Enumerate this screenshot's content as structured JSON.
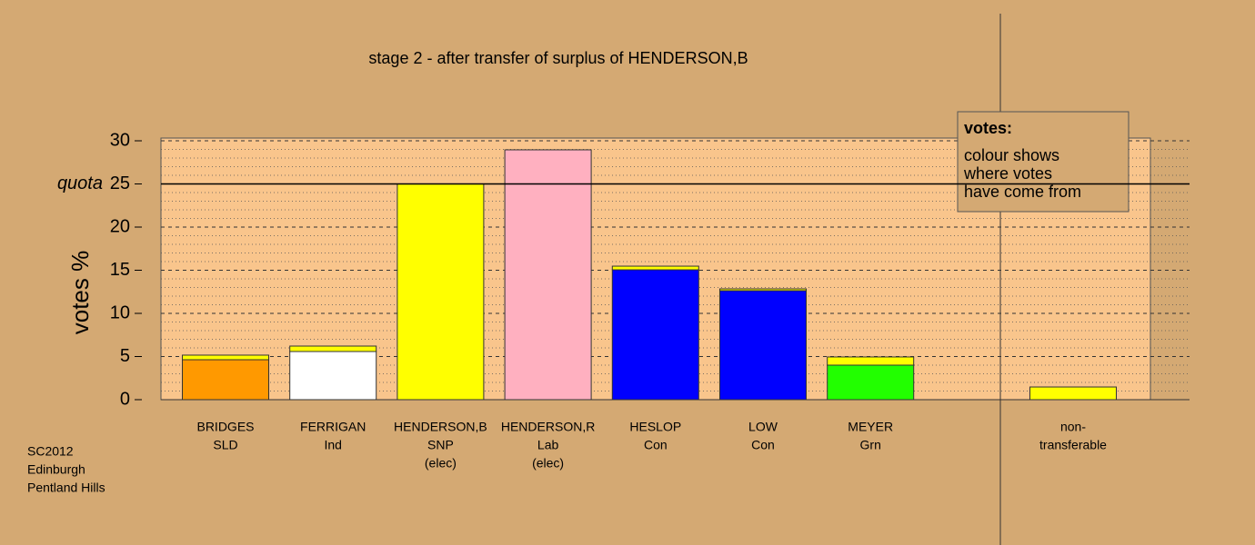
{
  "chart_data": {
    "type": "stacked_bar",
    "title": "stage 2 - after transfer of surplus of HENDERSON,B",
    "y_label": "votes %",
    "categories": [
      [
        "BRIDGES",
        "SLD"
      ],
      [
        "FERRIGAN",
        "Ind"
      ],
      [
        "HENDERSON,B",
        "SNP",
        "(elec)"
      ],
      [
        "HENDERSON,R",
        "Lab",
        "(elec)"
      ],
      [
        "HESLOP",
        "Con"
      ],
      [
        "LOW",
        "Con"
      ],
      [
        "MEYER",
        "Grn"
      ],
      [
        "non-",
        "transferable"
      ]
    ],
    "series": [
      {
        "colors": [
          "#ff9900",
          "#ffffff",
          "#ffff00",
          "#ffb0c0",
          "#0000ff",
          "#0000ff",
          "#22ff00",
          null
        ],
        "values": [
          4.63,
          5.58,
          25,
          28.95,
          15.05,
          12.63,
          4.0,
          null
        ]
      },
      {
        "color": "#ffff00",
        "values": [
          0.53,
          0.63,
          null,
          null,
          0.42,
          0.21,
          0.95,
          1.47
        ]
      }
    ],
    "ylim": [
      0,
      30
    ],
    "yticks": [
      0,
      5,
      10,
      15,
      20,
      25,
      30
    ],
    "grid": true,
    "quota": {
      "label": "quota",
      "value": 25
    },
    "legend": {
      "title": "votes:",
      "lines": [
        "colour shows",
        "where votes",
        "have come from"
      ]
    },
    "footnote": [
      "SC2012",
      "Edinburgh",
      "Pentland Hills"
    ]
  }
}
